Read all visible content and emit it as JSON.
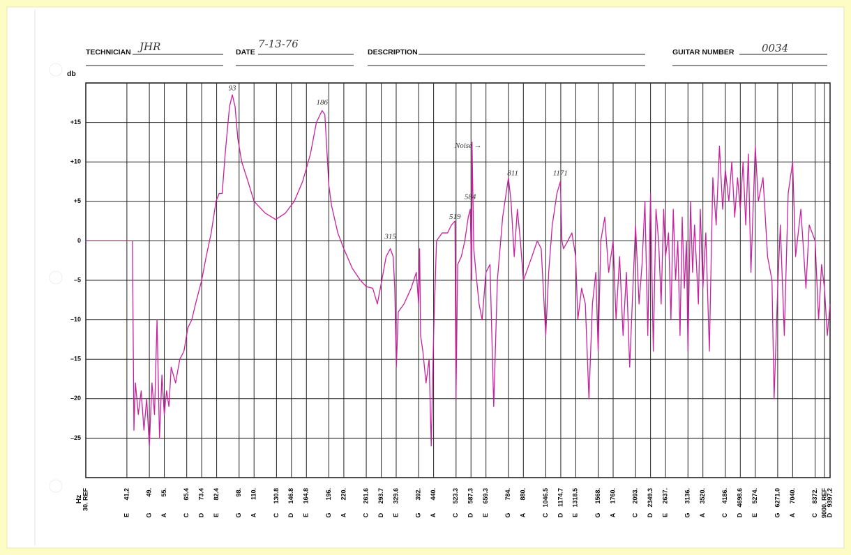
{
  "form": {
    "technician": {
      "label": "TECHNICIAN",
      "value": "JHR"
    },
    "date": {
      "label": "DATE",
      "value": "7-13-76"
    },
    "description": {
      "label": "DESCRIPTION"
    },
    "guitar_number": {
      "label": "GUITAR NUMBER",
      "value": "0034"
    }
  },
  "chart_data": {
    "type": "line",
    "y_label": "db",
    "x_label": "Hz",
    "xscale": "log",
    "grid": true,
    "color": "#c8209e",
    "xlim": [
      30,
      9397.2
    ],
    "ylim": [
      -30,
      20
    ],
    "yticks": [
      {
        "value": 15,
        "label": "+15"
      },
      {
        "value": 10,
        "label": "+10"
      },
      {
        "value": 5,
        "label": "+5"
      },
      0,
      {
        "value": -5,
        "label": "–5"
      },
      {
        "value": -10,
        "label": "–10"
      },
      {
        "value": -15,
        "label": "–15"
      },
      {
        "value": -20,
        "label": "–20"
      },
      {
        "value": -25,
        "label": "–25"
      }
    ],
    "xticks": [
      {
        "value": 30,
        "label": "30. REF"
      },
      41.2,
      {
        "value": 49,
        "label": "49."
      },
      {
        "value": 55,
        "label": "55."
      },
      65.4,
      73.4,
      82.4,
      {
        "value": 98,
        "label": "98."
      },
      {
        "value": 110,
        "label": "110."
      },
      130.8,
      146.8,
      164.8,
      {
        "value": 196,
        "label": "196."
      },
      {
        "value": 220,
        "label": "220."
      },
      261.6,
      293.7,
      329.6,
      {
        "value": 392,
        "label": "392."
      },
      {
        "value": 440,
        "label": "440."
      },
      523.3,
      587.3,
      659.3,
      {
        "value": 784,
        "label": "784."
      },
      {
        "value": 880,
        "label": "880."
      },
      1046.5,
      1174.7,
      1318.5,
      {
        "value": 1568,
        "label": "1568."
      },
      {
        "value": 1760,
        "label": "1760."
      },
      {
        "value": 2093,
        "label": "2093."
      },
      2349.3,
      {
        "value": 2637,
        "label": "2637."
      },
      {
        "value": 3136,
        "label": "3136."
      },
      {
        "value": 3520,
        "label": "3520."
      },
      {
        "value": 4186,
        "label": "4186."
      },
      4698.6,
      {
        "value": 5274,
        "label": "5274."
      },
      {
        "value": 6271,
        "label": "6271.0"
      },
      {
        "value": 7040,
        "label": "7040."
      },
      {
        "value": 8372,
        "label": "8372."
      },
      {
        "value": 9000,
        "label": "9000. REF"
      },
      9397.2
    ],
    "note_names": [
      null,
      "E",
      "G",
      "A",
      "C",
      "D",
      "E",
      "G",
      "A",
      "C",
      "D",
      "E",
      "G",
      "A",
      "C",
      "D",
      "E",
      "G",
      "A",
      "C",
      "D",
      "E",
      "G",
      "A",
      "C",
      "D",
      "E",
      "G",
      "A",
      "C",
      "D",
      "E",
      "G",
      "A",
      "C",
      "D",
      "E",
      "G",
      "A",
      "C",
      null,
      "D"
    ],
    "x": [
      30,
      43,
      43.5,
      44,
      45,
      46,
      47,
      48,
      49,
      50,
      51,
      52,
      53,
      54,
      55,
      56,
      57,
      58,
      60,
      62,
      64,
      66,
      68,
      70,
      73.4,
      76,
      79,
      82,
      84,
      86,
      88,
      91,
      93,
      95,
      97,
      100,
      105,
      110,
      120,
      130,
      140,
      150,
      160,
      170,
      178,
      186,
      190,
      196,
      200,
      210,
      220,
      235,
      250,
      261.6,
      275,
      285,
      295,
      305,
      315,
      322,
      326,
      330,
      335,
      350,
      370,
      385,
      392,
      395,
      398,
      405,
      415,
      425,
      432,
      440,
      450,
      470,
      490,
      505,
      519,
      523,
      530,
      545,
      560,
      575,
      584,
      590,
      592,
      600,
      610,
      625,
      640,
      659,
      680,
      700,
      720,
      750,
      784,
      800,
      820,
      840,
      860,
      880,
      900,
      940,
      980,
      1010,
      1046,
      1070,
      1100,
      1140,
      1171,
      1185,
      1200,
      1240,
      1280,
      1318,
      1340,
      1380,
      1420,
      1460,
      1500,
      1540,
      1568,
      1600,
      1650,
      1700,
      1760,
      1800,
      1850,
      1900,
      1950,
      2000,
      2050,
      2093,
      2150,
      2200,
      2250,
      2300,
      2349,
      2400,
      2450,
      2500,
      2550,
      2600,
      2637,
      2700,
      2750,
      2800,
      2850,
      2900,
      2950,
      3000,
      3050,
      3100,
      3136,
      3200,
      3250,
      3300,
      3400,
      3450,
      3520,
      3600,
      3700,
      3800,
      3900,
      4000,
      4100,
      4186,
      4300,
      4400,
      4500,
      4600,
      4698,
      4800,
      4900,
      5000,
      5100,
      5274,
      5400,
      5600,
      5800,
      6000,
      6100,
      6271,
      6400,
      6600,
      6800,
      7040,
      7200,
      7500,
      7800,
      8000,
      8372,
      8600,
      8800,
      9000,
      9200,
      9397
    ],
    "values": [
      0,
      0,
      -24,
      -18,
      -22,
      -19,
      -24,
      -20,
      -26,
      -18,
      -22,
      -10,
      -25,
      -17,
      -22,
      -19,
      -21,
      -16,
      -18,
      -15,
      -14,
      -11,
      -10,
      -8,
      -5,
      -2,
      1,
      5,
      6,
      6,
      11,
      17,
      18.5,
      17,
      13,
      10,
      7.5,
      5,
      3.5,
      2.7,
      3.5,
      5,
      7.5,
      11,
      15,
      16.5,
      16,
      7,
      4.5,
      1,
      -1,
      -3.5,
      -5,
      -5.8,
      -6,
      -8,
      -5,
      -2,
      -1,
      -2,
      -6,
      -16,
      -9,
      -8,
      -6,
      -4,
      -8,
      -1,
      -12,
      -14,
      -18,
      -15,
      -26,
      -12,
      0,
      1,
      1,
      2,
      2.5,
      -20,
      -3,
      -2,
      0,
      3,
      4,
      -5,
      12.5,
      -1,
      -4,
      -8,
      -10,
      -4,
      -3,
      -21,
      -5,
      3,
      8,
      5,
      -2,
      4,
      0,
      -5,
      -4,
      -2,
      0,
      -1,
      -12,
      -4,
      2,
      6,
      7.5,
      0,
      -1,
      0,
      1,
      -2,
      -10,
      -6,
      -8,
      -20,
      -8,
      -4,
      -14,
      0,
      3,
      -4,
      0,
      -10,
      -2,
      -12,
      -4,
      -16,
      -6,
      2,
      -8,
      -3,
      5,
      -12,
      6,
      -14,
      4,
      0,
      -8,
      4,
      -2,
      1,
      -10,
      4,
      -5,
      0,
      -12,
      3,
      -6,
      0,
      -14,
      5,
      -4,
      2,
      -8,
      4,
      -6,
      1,
      -14,
      8,
      2,
      12,
      4,
      9,
      5,
      10,
      3,
      8,
      4,
      10,
      2,
      11,
      -4,
      12,
      5,
      8,
      -2,
      -5,
      -20,
      -6,
      2,
      -12,
      6,
      10,
      -2,
      4,
      -6,
      2,
      0,
      -10,
      -3,
      -6,
      -12,
      -8
    ],
    "annotations": [
      {
        "text": "93",
        "x": 93,
        "y": 19.3
      },
      {
        "text": "186",
        "x": 186,
        "y": 17.5
      },
      {
        "text": "315",
        "x": 315,
        "y": 0.5
      },
      {
        "text": "519",
        "x": 519,
        "y": 3
      },
      {
        "text": "584",
        "x": 584,
        "y": 5.5
      },
      {
        "text": "811",
        "x": 811,
        "y": 8.5
      },
      {
        "text": "1171",
        "x": 1171,
        "y": 8.5
      },
      {
        "text": "Noise →",
        "x": 575,
        "y": 12
      }
    ]
  }
}
